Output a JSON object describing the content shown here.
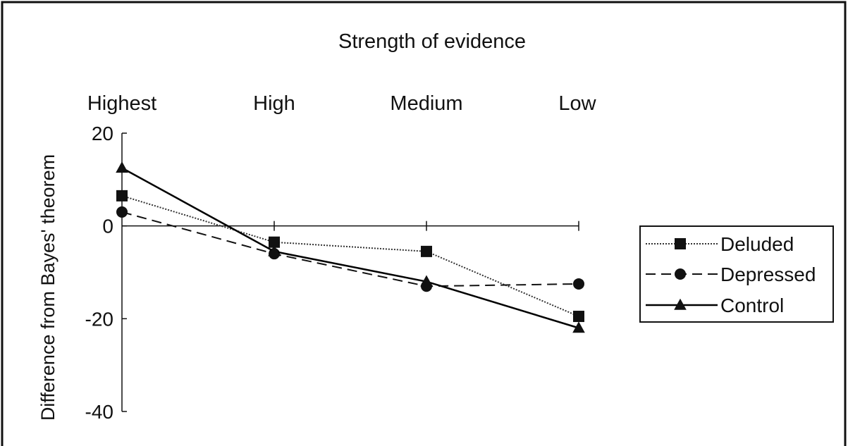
{
  "chart_data": {
    "type": "line",
    "title": "Strength of evidence",
    "ylabel": "Difference from Bayes' theorem",
    "xlabel": "",
    "categories": [
      "Highest",
      "High",
      "Medium",
      "Low"
    ],
    "ylim": [
      -40,
      20
    ],
    "yticks": [
      20,
      0,
      -20,
      -40
    ],
    "x_axis_position": "top, crossing y = 0",
    "grid": false,
    "legend_position": "right",
    "series": [
      {
        "name": "Deluded",
        "values": [
          6.5,
          -3.5,
          -5.5,
          -19.5
        ],
        "marker": "square",
        "line": "dotted",
        "color": "#333333"
      },
      {
        "name": "Depressed",
        "values": [
          3,
          -6,
          -13,
          -12.5
        ],
        "marker": "circle",
        "line": "dashed",
        "color": "#111111"
      },
      {
        "name": "Control",
        "values": [
          12.5,
          -5.5,
          -12,
          -22
        ],
        "marker": "triangle",
        "line": "solid",
        "color": "#000000"
      }
    ]
  }
}
